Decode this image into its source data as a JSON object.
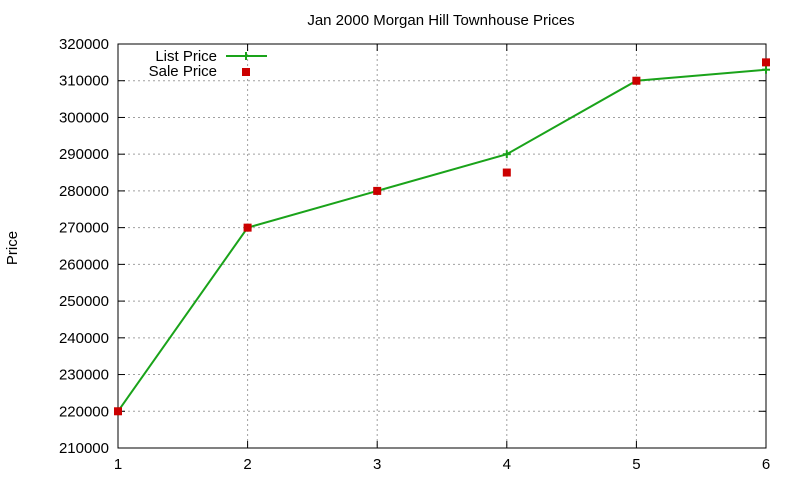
{
  "chart_data": {
    "type": "line",
    "title": "Jan 2000 Morgan Hill Townhouse Prices",
    "xlabel": "",
    "ylabel": "Price",
    "x": [
      1,
      2,
      3,
      4,
      5,
      6
    ],
    "xlim": [
      1,
      6
    ],
    "ylim": [
      210000,
      320000
    ],
    "xticks": [
      1,
      2,
      3,
      4,
      5,
      6
    ],
    "yticks": [
      210000,
      220000,
      230000,
      240000,
      250000,
      260000,
      270000,
      280000,
      290000,
      300000,
      310000,
      320000
    ],
    "grid": true,
    "legend_position": "top-left",
    "series": [
      {
        "name": "List Price",
        "style": "lines with plus markers",
        "color": "#1aa31a",
        "values": [
          220000,
          270000,
          280000,
          290000,
          310000,
          313000
        ]
      },
      {
        "name": "Sale Price",
        "style": "square points",
        "color": "#cc0000",
        "values": [
          220000,
          270000,
          280000,
          285000,
          310000,
          315000
        ]
      }
    ]
  }
}
